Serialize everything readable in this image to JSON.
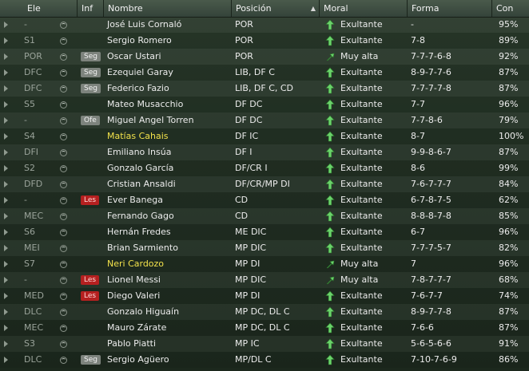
{
  "colors": {
    "header_bg": "#3e4d40",
    "table_bg": "#243226",
    "highlight_name": "#f3e24b",
    "injury_badge": "#b52020",
    "info_badge": "#7d837d",
    "arrow_green": "#6bd36b"
  },
  "columns": {
    "ele": "Ele",
    "inf": "Inf",
    "nombre": "Nombre",
    "posicion": "Posición",
    "moral": "Moral",
    "forma": "Forma",
    "con": "Con"
  },
  "rows": [
    {
      "ele": "-",
      "inf": "",
      "inf_type": "",
      "nombre": "José Luis Cornaló",
      "highlight": false,
      "posicion": "POR",
      "moral_icon": "up",
      "moral": "Exultante",
      "forma": "-",
      "con": "95%"
    },
    {
      "ele": "S1",
      "inf": "",
      "inf_type": "",
      "nombre": "Sergio Romero",
      "highlight": false,
      "posicion": "POR",
      "moral_icon": "up",
      "moral": "Exultante",
      "forma": "7-8",
      "con": "89%"
    },
    {
      "ele": "POR",
      "inf": "Seg",
      "inf_type": "gray",
      "nombre": "Oscar Ustari",
      "highlight": false,
      "posicion": "POR",
      "moral_icon": "up-right",
      "moral": "Muy alta",
      "forma": "7-7-7-6-8",
      "con": "92%"
    },
    {
      "ele": "DFC",
      "inf": "Seg",
      "inf_type": "gray",
      "nombre": "Ezequiel Garay",
      "highlight": false,
      "posicion": "LIB, DF C",
      "moral_icon": "up",
      "moral": "Exultante",
      "forma": "8-9-7-7-6",
      "con": "87%"
    },
    {
      "ele": "DFC",
      "inf": "Seg",
      "inf_type": "gray",
      "nombre": "Federico Fazio",
      "highlight": false,
      "posicion": "LIB, DF C, CD",
      "moral_icon": "up",
      "moral": "Exultante",
      "forma": "7-7-7-7-8",
      "con": "87%"
    },
    {
      "ele": "S5",
      "inf": "",
      "inf_type": "",
      "nombre": "Mateo Musacchio",
      "highlight": false,
      "posicion": "DF DC",
      "moral_icon": "up",
      "moral": "Exultante",
      "forma": "7-7",
      "con": "96%"
    },
    {
      "ele": "-",
      "inf": "Ofe",
      "inf_type": "gray",
      "nombre": "Miguel Angel Torren",
      "highlight": false,
      "posicion": "DF DC",
      "moral_icon": "up",
      "moral": "Exultante",
      "forma": "7-7-8-6",
      "con": "79%"
    },
    {
      "ele": "S4",
      "inf": "",
      "inf_type": "",
      "nombre": "Matías Cahais",
      "highlight": true,
      "posicion": "DF IC",
      "moral_icon": "up",
      "moral": "Exultante",
      "forma": "8-7",
      "con": "100%"
    },
    {
      "ele": "DFI",
      "inf": "",
      "inf_type": "",
      "nombre": "Emiliano Insúa",
      "highlight": false,
      "posicion": "DF I",
      "moral_icon": "up",
      "moral": "Exultante",
      "forma": "9-9-8-6-7",
      "con": "87%"
    },
    {
      "ele": "S2",
      "inf": "",
      "inf_type": "",
      "nombre": "Gonzalo García",
      "highlight": false,
      "posicion": "DF/CR I",
      "moral_icon": "up",
      "moral": "Exultante",
      "forma": "8-6",
      "con": "99%"
    },
    {
      "ele": "DFD",
      "inf": "",
      "inf_type": "",
      "nombre": "Cristian Ansaldi",
      "highlight": false,
      "posicion": "DF/CR/MP DI",
      "moral_icon": "up",
      "moral": "Exultante",
      "forma": "7-6-7-7-7",
      "con": "84%"
    },
    {
      "ele": "-",
      "inf": "Les",
      "inf_type": "red",
      "nombre": "Ever Banega",
      "highlight": false,
      "posicion": "CD",
      "moral_icon": "up",
      "moral": "Exultante",
      "forma": "6-7-8-7-5",
      "con": "62%"
    },
    {
      "ele": "MEC",
      "inf": "",
      "inf_type": "",
      "nombre": "Fernando Gago",
      "highlight": false,
      "posicion": "CD",
      "moral_icon": "up",
      "moral": "Exultante",
      "forma": "8-8-8-7-8",
      "con": "85%"
    },
    {
      "ele": "S6",
      "inf": "",
      "inf_type": "",
      "nombre": "Hernán Fredes",
      "highlight": false,
      "posicion": "ME DIC",
      "moral_icon": "up",
      "moral": "Exultante",
      "forma": "6-7",
      "con": "96%"
    },
    {
      "ele": "MEI",
      "inf": "",
      "inf_type": "",
      "nombre": "Brian Sarmiento",
      "highlight": false,
      "posicion": "MP DIC",
      "moral_icon": "up",
      "moral": "Exultante",
      "forma": "7-7-7-5-7",
      "con": "82%"
    },
    {
      "ele": "S7",
      "inf": "",
      "inf_type": "",
      "nombre": "Neri Cardozo",
      "highlight": true,
      "posicion": "MP DI",
      "moral_icon": "up-right",
      "moral": "Muy alta",
      "forma": "7",
      "con": "96%"
    },
    {
      "ele": "-",
      "inf": "Les",
      "inf_type": "red",
      "nombre": "Lionel Messi",
      "highlight": false,
      "posicion": "MP DIC",
      "moral_icon": "up-right",
      "moral": "Muy alta",
      "forma": "7-8-7-7-7",
      "con": "68%"
    },
    {
      "ele": "MED",
      "inf": "Les",
      "inf_type": "red",
      "nombre": "Diego Valeri",
      "highlight": false,
      "posicion": "MP DI",
      "moral_icon": "up",
      "moral": "Exultante",
      "forma": "7-6-7-7",
      "con": "74%"
    },
    {
      "ele": "DLC",
      "inf": "",
      "inf_type": "",
      "nombre": "Gonzalo Higuaín",
      "highlight": false,
      "posicion": "MP DC, DL C",
      "moral_icon": "up",
      "moral": "Exultante",
      "forma": "8-9-7-7-8",
      "con": "87%"
    },
    {
      "ele": "MEC",
      "inf": "",
      "inf_type": "",
      "nombre": "Mauro Zárate",
      "highlight": false,
      "posicion": "MP DC, DL C",
      "moral_icon": "up",
      "moral": "Exultante",
      "forma": "7-6-6",
      "con": "87%"
    },
    {
      "ele": "S3",
      "inf": "",
      "inf_type": "",
      "nombre": "Pablo Piatti",
      "highlight": false,
      "posicion": "MP IC",
      "moral_icon": "up",
      "moral": "Exultante",
      "forma": "5-6-5-6-6",
      "con": "91%"
    },
    {
      "ele": "DLC",
      "inf": "Seg",
      "inf_type": "gray",
      "nombre": "Sergio Agüero",
      "highlight": false,
      "posicion": "MP/DL C",
      "moral_icon": "up",
      "moral": "Exultante",
      "forma": "7-10-7-6-9",
      "con": "86%"
    }
  ]
}
